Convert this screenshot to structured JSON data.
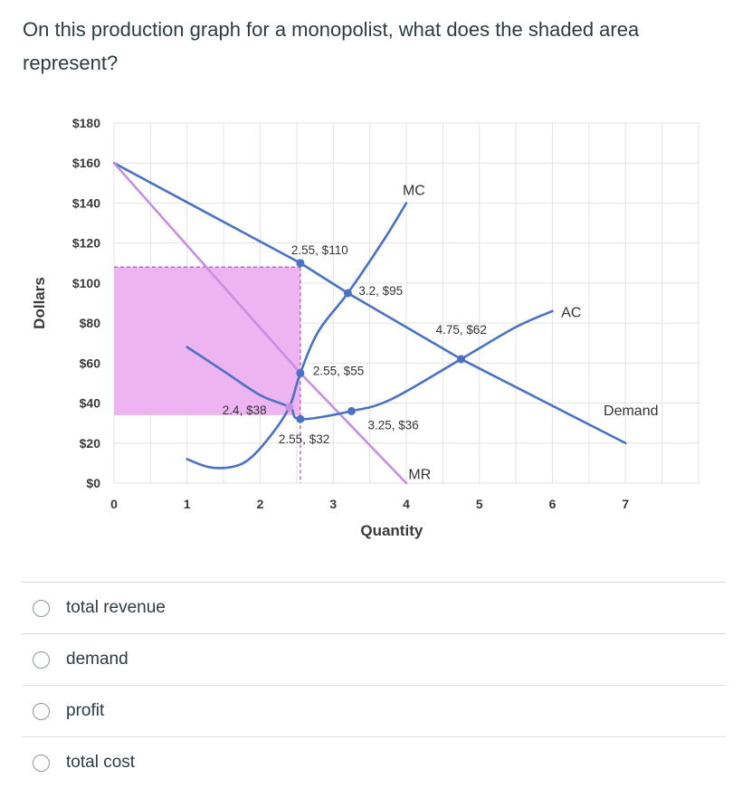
{
  "question": {
    "text": "On this production graph for a monopolist, what does the shaded area represent?"
  },
  "choices": [
    {
      "label": "total revenue"
    },
    {
      "label": "demand"
    },
    {
      "label": "profit"
    },
    {
      "label": "total cost"
    }
  ],
  "chart_data": {
    "type": "line",
    "xlabel": "Quantity",
    "ylabel": "Dollars",
    "xlim": [
      0,
      8
    ],
    "ylim": [
      0,
      180
    ],
    "x_ticks": [
      0,
      1,
      2,
      3,
      4,
      5,
      6,
      7
    ],
    "y_ticks": [
      0,
      20,
      40,
      60,
      80,
      100,
      120,
      140,
      160,
      180
    ],
    "y_tick_labels": [
      "$0",
      "$20",
      "$40",
      "$60",
      "$80",
      "$100",
      "$120",
      "$140",
      "$160",
      "$180"
    ],
    "grid": true,
    "colors": {
      "curve": "#4a72c4",
      "mr": "#c88ee0",
      "shade": "#eeb3f1",
      "grid": "#e3e3e3"
    },
    "series": [
      {
        "name": "Demand",
        "points": [
          [
            0,
            160
          ],
          [
            2.55,
            110
          ],
          [
            3.2,
            95
          ],
          [
            4.75,
            62
          ],
          [
            7,
            20
          ]
        ]
      },
      {
        "name": "MR",
        "points": [
          [
            0,
            160
          ],
          [
            2.55,
            55
          ],
          [
            4,
            0
          ]
        ]
      },
      {
        "name": "MC",
        "points": [
          [
            1,
            12
          ],
          [
            1.3,
            8
          ],
          [
            1.6,
            8
          ],
          [
            1.85,
            12
          ],
          [
            2.15,
            24
          ],
          [
            2.4,
            38
          ],
          [
            2.55,
            55
          ],
          [
            2.8,
            76
          ],
          [
            3.2,
            95
          ],
          [
            3.7,
            122
          ],
          [
            4,
            140
          ]
        ]
      },
      {
        "name": "AC",
        "points": [
          [
            1,
            68
          ],
          [
            1.5,
            56
          ],
          [
            2,
            44
          ],
          [
            2.4,
            38
          ],
          [
            2.55,
            32
          ],
          [
            3.25,
            36
          ],
          [
            3.8,
            42
          ],
          [
            4.75,
            62
          ],
          [
            5.5,
            78
          ],
          [
            6,
            86
          ]
        ]
      }
    ],
    "annotations": [
      {
        "x": 2.55,
        "y": 110,
        "label": "2.55, $110"
      },
      {
        "x": 3.2,
        "y": 95,
        "label": "3.2, $95"
      },
      {
        "x": 4.75,
        "y": 62,
        "label": "4.75, $62"
      },
      {
        "x": 2.55,
        "y": 55,
        "label": "2.55, $55"
      },
      {
        "x": 2.4,
        "y": 38,
        "label": "2.4, $38"
      },
      {
        "x": 2.55,
        "y": 32,
        "label": "2.55, $32"
      },
      {
        "x": 3.25,
        "y": 36,
        "label": "3.25, $36"
      }
    ],
    "shaded_area": {
      "x": [
        0,
        2.55
      ],
      "y": [
        34,
        108
      ]
    },
    "reference_lines": {
      "quantity": 2.55,
      "price": 108
    }
  }
}
